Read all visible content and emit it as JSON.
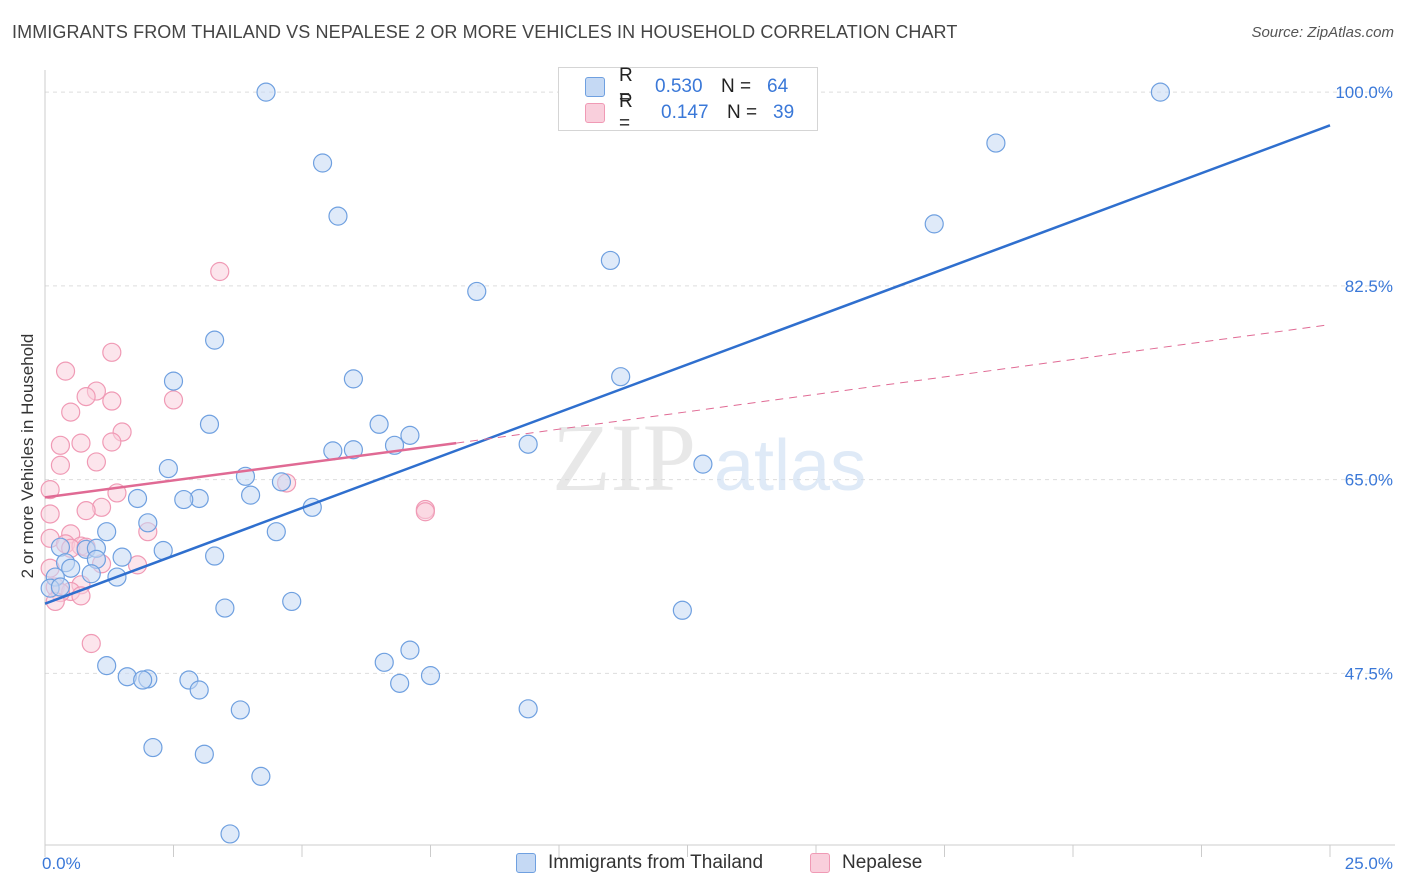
{
  "header": {
    "title": "IMMIGRANTS FROM THAILAND VS NEPALESE 2 OR MORE VEHICLES IN HOUSEHOLD CORRELATION CHART",
    "source": "Source: ZipAtlas.com"
  },
  "legend": {
    "rows": [
      {
        "r_label": "R =",
        "r_value": "0.530",
        "n_label": "N =",
        "n_value": "64"
      },
      {
        "r_label": "R =",
        "r_value": "0.147",
        "n_label": "N =",
        "n_value": "39"
      }
    ]
  },
  "watermark": {
    "zip": "ZIP",
    "atlas": "atlas"
  },
  "colors": {
    "thailand": "#6fa0e0",
    "thailand_fill": "#c5d9f4",
    "thailand_line": "#2f6fce",
    "nepalese": "#f09ab5",
    "nepalese_fill": "#f9cfdc",
    "nepalese_line": "#e06a94",
    "tick_label": "#3a78d8",
    "grid": "#dddddd"
  },
  "chart_data": {
    "type": "scatter",
    "title": "IMMIGRANTS FROM THAILAND VS NEPALESE 2 OR MORE VEHICLES IN HOUSEHOLD CORRELATION CHART",
    "xlabel": "",
    "ylabel": "2 or more Vehicles in Household",
    "xlim": [
      0,
      25
    ],
    "ylim": [
      32,
      102
    ],
    "x_tick_labels": [
      "0.0%",
      "25.0%"
    ],
    "y_ticks": [
      47.5,
      65.0,
      82.5,
      100.0
    ],
    "y_tick_labels": [
      "47.5%",
      "65.0%",
      "82.5%",
      "100.0%"
    ],
    "grid": true,
    "legend_position": "top-center",
    "series": [
      {
        "name": "Immigrants from Thailand",
        "color": "#6fa0e0",
        "points": [
          [
            4.3,
            100.0
          ],
          [
            21.7,
            100.0
          ],
          [
            5.4,
            93.6
          ],
          [
            18.5,
            95.4
          ],
          [
            5.7,
            88.8
          ],
          [
            17.3,
            88.1
          ],
          [
            11.0,
            84.8
          ],
          [
            8.4,
            82.0
          ],
          [
            3.3,
            77.6
          ],
          [
            2.5,
            73.9
          ],
          [
            6.0,
            74.1
          ],
          [
            11.2,
            74.3
          ],
          [
            3.2,
            70.0
          ],
          [
            6.5,
            70.0
          ],
          [
            7.1,
            69.0
          ],
          [
            6.8,
            68.1
          ],
          [
            9.4,
            68.2
          ],
          [
            5.6,
            67.6
          ],
          [
            6.0,
            67.7
          ],
          [
            12.8,
            66.4
          ],
          [
            2.4,
            66.0
          ],
          [
            3.9,
            65.3
          ],
          [
            4.6,
            64.8
          ],
          [
            3.0,
            63.3
          ],
          [
            2.7,
            63.2
          ],
          [
            4.0,
            63.6
          ],
          [
            1.8,
            63.3
          ],
          [
            5.2,
            62.5
          ],
          [
            2.0,
            61.1
          ],
          [
            1.2,
            60.3
          ],
          [
            4.5,
            60.3
          ],
          [
            2.3,
            58.6
          ],
          [
            3.3,
            58.1
          ],
          [
            0.3,
            58.9
          ],
          [
            0.8,
            58.7
          ],
          [
            1.0,
            58.8
          ],
          [
            0.4,
            57.5
          ],
          [
            0.5,
            57.0
          ],
          [
            1.0,
            57.8
          ],
          [
            0.2,
            56.2
          ],
          [
            0.9,
            56.5
          ],
          [
            1.4,
            56.2
          ],
          [
            0.1,
            55.2
          ],
          [
            1.5,
            58.0
          ],
          [
            3.5,
            53.4
          ],
          [
            4.8,
            54.0
          ],
          [
            12.4,
            53.2
          ],
          [
            0.3,
            55.3
          ],
          [
            6.6,
            48.5
          ],
          [
            7.1,
            49.6
          ],
          [
            1.2,
            48.2
          ],
          [
            1.6,
            47.2
          ],
          [
            2.0,
            47.0
          ],
          [
            1.9,
            46.9
          ],
          [
            2.8,
            46.9
          ],
          [
            3.0,
            46.0
          ],
          [
            6.9,
            46.6
          ],
          [
            7.5,
            47.3
          ],
          [
            3.8,
            44.2
          ],
          [
            9.4,
            44.3
          ],
          [
            2.1,
            40.8
          ],
          [
            3.1,
            40.2
          ],
          [
            4.2,
            38.2
          ],
          [
            3.6,
            33.0
          ]
        ]
      },
      {
        "name": "Nepalese",
        "color": "#f09ab5",
        "points": [
          [
            3.4,
            83.8
          ],
          [
            1.3,
            76.5
          ],
          [
            0.4,
            74.8
          ],
          [
            1.0,
            73.0
          ],
          [
            0.8,
            72.5
          ],
          [
            1.3,
            72.1
          ],
          [
            2.5,
            72.2
          ],
          [
            0.5,
            71.1
          ],
          [
            1.5,
            69.3
          ],
          [
            0.3,
            68.1
          ],
          [
            0.7,
            68.3
          ],
          [
            1.3,
            68.4
          ],
          [
            0.3,
            66.3
          ],
          [
            1.0,
            66.6
          ],
          [
            0.1,
            64.1
          ],
          [
            1.4,
            63.8
          ],
          [
            4.7,
            64.7
          ],
          [
            1.1,
            62.5
          ],
          [
            0.8,
            62.2
          ],
          [
            0.1,
            61.9
          ],
          [
            7.4,
            62.3
          ],
          [
            7.4,
            62.1
          ],
          [
            2.0,
            60.3
          ],
          [
            0.5,
            60.1
          ],
          [
            0.1,
            59.7
          ],
          [
            0.4,
            59.2
          ],
          [
            0.7,
            59.0
          ],
          [
            0.5,
            58.8
          ],
          [
            0.8,
            58.9
          ],
          [
            1.1,
            57.4
          ],
          [
            1.8,
            57.3
          ],
          [
            0.1,
            57.0
          ],
          [
            0.7,
            55.5
          ],
          [
            0.2,
            55.3
          ],
          [
            0.5,
            54.9
          ],
          [
            0.3,
            54.8
          ],
          [
            0.7,
            54.5
          ],
          [
            0.2,
            54.0
          ],
          [
            0.9,
            50.2
          ]
        ]
      }
    ],
    "trend_lines": [
      {
        "series": "Immigrants from Thailand",
        "style": "solid",
        "from": [
          0,
          53.8
        ],
        "to": [
          25,
          97.0
        ]
      },
      {
        "series": "Nepalese",
        "style": "solid",
        "from": [
          0,
          63.4
        ],
        "to": [
          8.0,
          68.3
        ]
      },
      {
        "series": "Nepalese",
        "style": "dashed",
        "from": [
          8.0,
          68.3
        ],
        "to": [
          25,
          79.0
        ]
      }
    ]
  }
}
